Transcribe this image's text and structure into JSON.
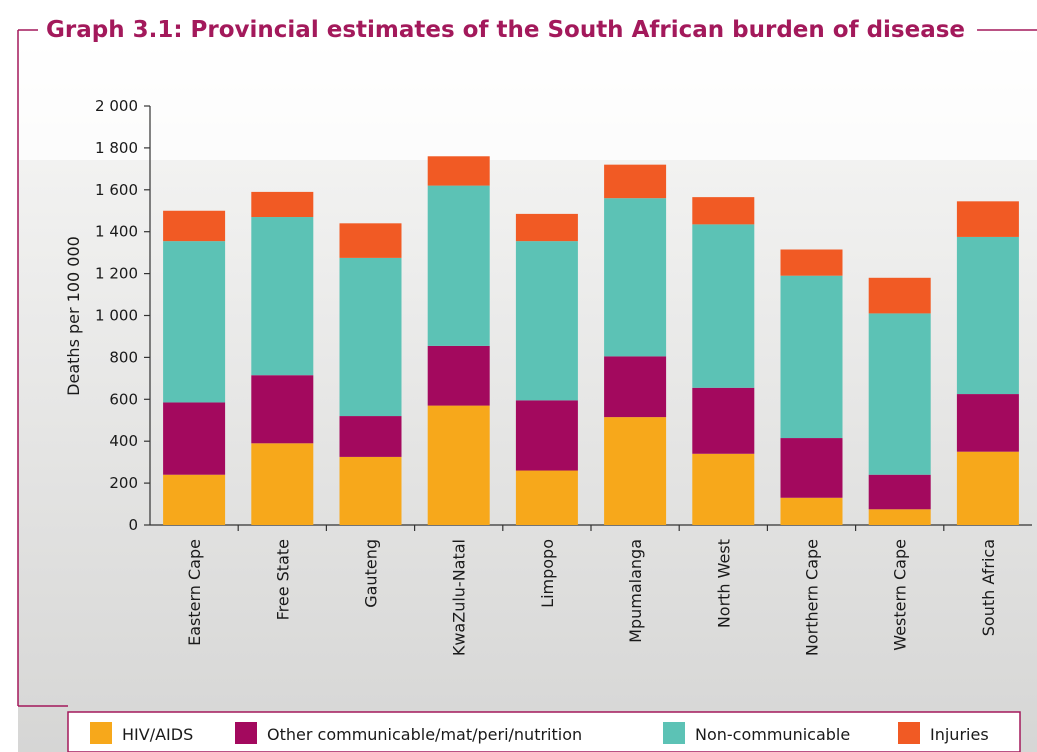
{
  "chart_data": {
    "type": "bar",
    "stacked": true,
    "title": "Graph 3.1: Provincial estimates of the South African burden of disease",
    "xlabel": "",
    "ylabel": "Deaths per 100 000",
    "ylim": [
      0,
      2000
    ],
    "yticks": [
      0,
      200,
      400,
      600,
      800,
      1000,
      1200,
      1400,
      1600,
      1800,
      2000
    ],
    "ytick_labels": [
      "0",
      "200",
      "400",
      "600",
      "800",
      "1 000",
      "1 200",
      "1 400",
      "1 600",
      "1 800",
      "2 000"
    ],
    "categories": [
      "Eastern Cape",
      "Free State",
      "Gauteng",
      "KwaZulu-Natal",
      "Limpopo",
      "Mpumalanga",
      "North West",
      "Northern Cape",
      "Western Cape",
      "South Africa"
    ],
    "series": [
      {
        "name": "HIV/AIDS",
        "color": "#f7a81b",
        "values": [
          240,
          390,
          325,
          570,
          260,
          515,
          340,
          130,
          75,
          350
        ]
      },
      {
        "name": "Other communicable/mat/peri/nutrition",
        "color": "#a3095e",
        "values": [
          345,
          325,
          195,
          285,
          335,
          290,
          315,
          285,
          165,
          275
        ]
      },
      {
        "name": "Non-communicable",
        "color": "#5cc2b5",
        "values": [
          770,
          755,
          755,
          765,
          760,
          755,
          780,
          775,
          770,
          750
        ]
      },
      {
        "name": "Injuries",
        "color": "#f15a24",
        "values": [
          145,
          120,
          165,
          140,
          130,
          160,
          130,
          125,
          170,
          170
        ]
      }
    ],
    "legend_position": "bottom",
    "grid": false
  }
}
